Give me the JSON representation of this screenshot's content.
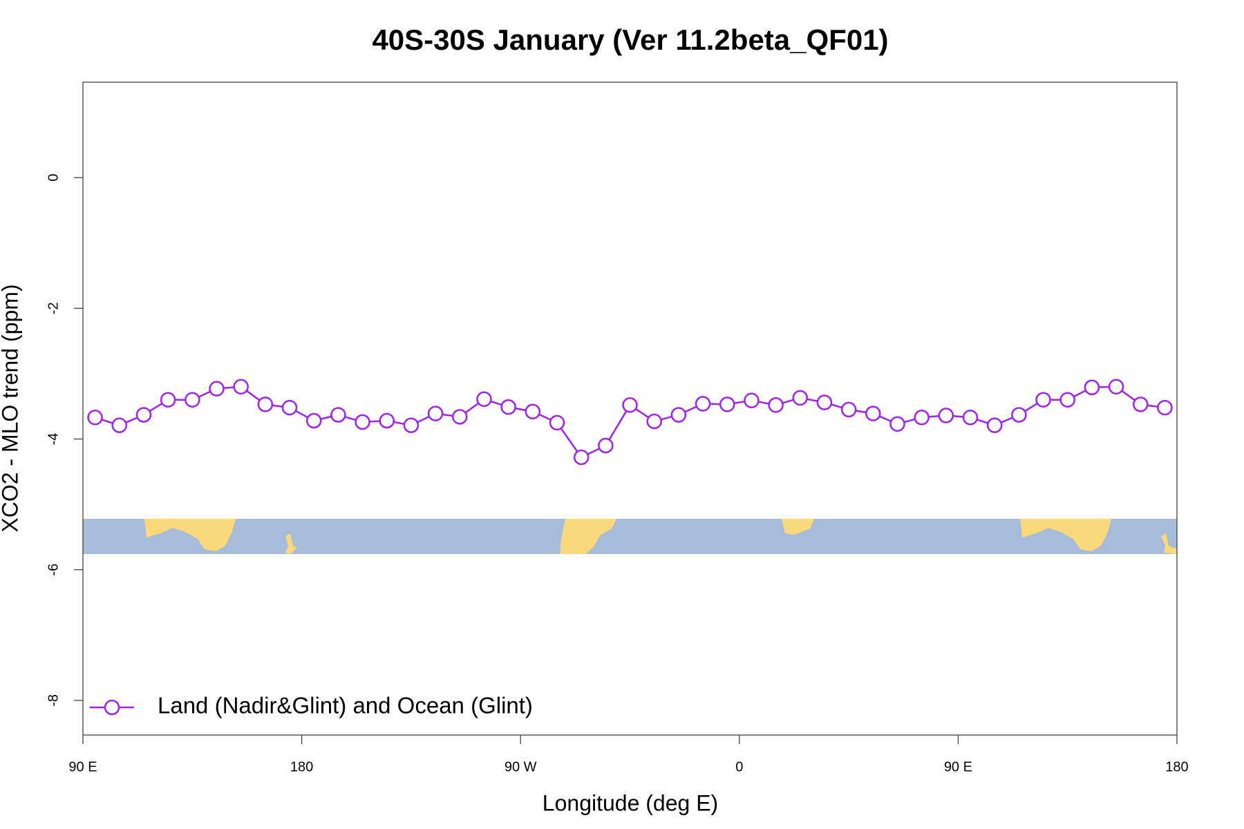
{
  "chart_data": {
    "type": "line",
    "title": "40S-30S January (Ver 11.2beta_QF01)",
    "x_label": "Longitude (deg E)",
    "y_label": "XCO2 - MLO trend (ppm)",
    "x": [
      95,
      105,
      115,
      125,
      135,
      145,
      155,
      165,
      175,
      185,
      195,
      205,
      215,
      225,
      235,
      245,
      255,
      265,
      275,
      285,
      295,
      305,
      315,
      325,
      335,
      345,
      355,
      365,
      375,
      385,
      395,
      405,
      415,
      425,
      435,
      445,
      455,
      465,
      475,
      485,
      495,
      505,
      515,
      525,
      535
    ],
    "series": [
      {
        "name": "Land (Nadir&Glint) and Ocean (Glint)",
        "color": "#a020f0",
        "values": [
          -3.67,
          -3.79,
          -3.63,
          -3.4,
          -3.4,
          -3.23,
          -3.2,
          -3.47,
          -3.52,
          -3.72,
          -3.63,
          -3.74,
          -3.72,
          -3.79,
          -3.61,
          -3.66,
          -3.39,
          -3.51,
          -3.58,
          -3.75,
          -4.28,
          -4.1,
          -3.48,
          -3.73,
          -3.63,
          -3.46,
          -3.47,
          -3.41,
          -3.48,
          -3.37,
          -3.44,
          -3.55,
          -3.61,
          -3.77,
          -3.67,
          -3.64,
          -3.67,
          -3.79,
          -3.63,
          -3.4,
          -3.4,
          -3.21,
          -3.2,
          -3.47,
          -3.52
        ]
      }
    ],
    "xlim": [
      90,
      540
    ],
    "xticks": [
      {
        "value": 90,
        "label": "90 E"
      },
      {
        "value": 180,
        "label": "180"
      },
      {
        "value": 270,
        "label": "90 W"
      },
      {
        "value": 360,
        "label": "0"
      },
      {
        "value": 450,
        "label": "90 E"
      },
      {
        "value": 540,
        "label": "180"
      }
    ],
    "ylim": [
      -8.53,
      1.46
    ],
    "yticks": [
      -8,
      -6,
      -4,
      -2,
      0
    ],
    "legend": "bottom-left",
    "grid": false
  }
}
